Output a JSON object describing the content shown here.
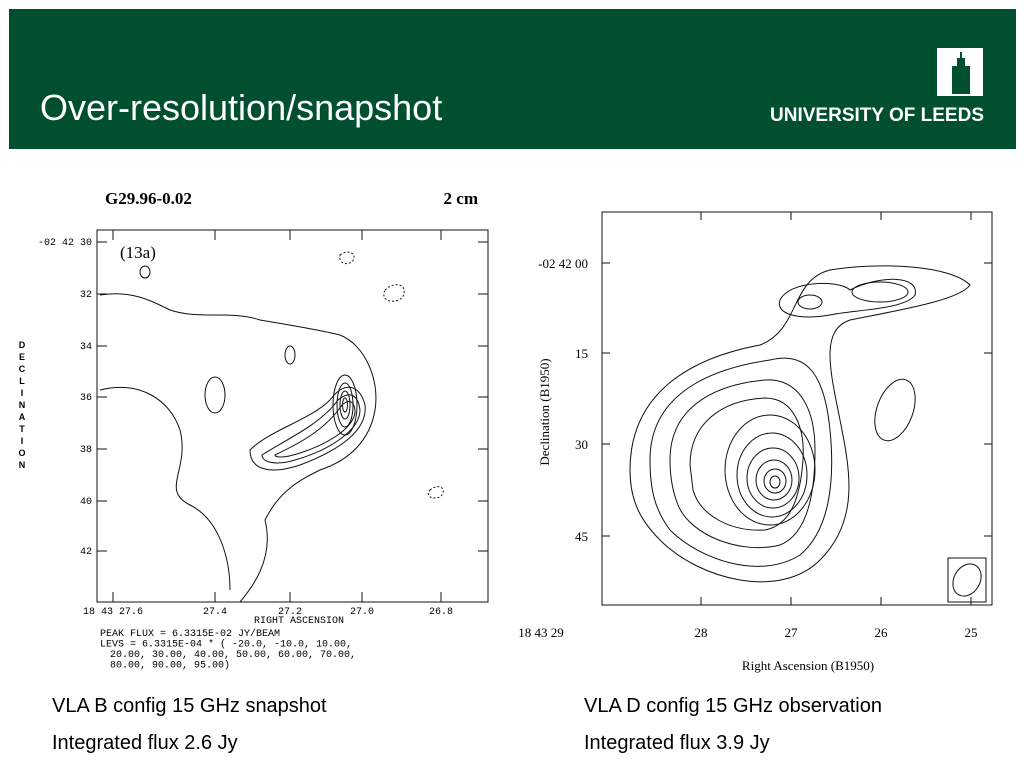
{
  "header": {
    "title": "Over-resolution/snapshot",
    "logo": "UNIVERSITY OF LEEDS"
  },
  "left_figure": {
    "source": "G29.96-0.02",
    "band": "2 cm",
    "panel": "(13a)",
    "y_axis_label": "DECLINATION",
    "y_ticks": [
      "-02 42 30",
      "32",
      "34",
      "36",
      "38",
      "40",
      "42"
    ],
    "x_ticks": [
      "18 43 27.6",
      "27.4",
      "27.2",
      "27.0",
      "26.8"
    ],
    "x_axis_label": "RIGHT ASCENSION",
    "notes": [
      "PEAK FLUX =  6.3315E-02 JY/BEAM",
      "LEVS =  6.3315E-04 * (  -20.0, -10.0, 10.00,",
      "20.00, 30.00, 40.00, 50.00, 60.00, 70.00,",
      "80.00, 90.00, 95.00)"
    ]
  },
  "right_figure": {
    "y_axis_label": "Declination (B1950)",
    "y_ticks": [
      "-02 42 00",
      "15",
      "30",
      "45"
    ],
    "x_ticks": [
      "18 43 29",
      "28",
      "27",
      "26",
      "25"
    ],
    "x_axis_label": "Right Ascension (B1950)"
  },
  "captions": {
    "left": [
      "VLA B config 15 GHz snapshot",
      "Integrated flux 2.6 Jy"
    ],
    "right": [
      "VLA D config 15 GHz observation",
      "Integrated flux 3.9 Jy"
    ]
  }
}
